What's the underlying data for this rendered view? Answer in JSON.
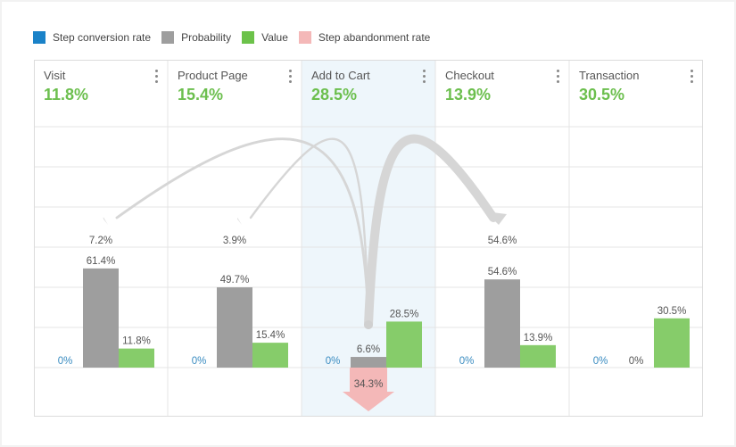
{
  "legend": [
    {
      "label": "Step conversion rate",
      "color": "#1a82c8"
    },
    {
      "label": "Probability",
      "color": "#9e9e9e"
    },
    {
      "label": "Value",
      "color": "#6cc24a"
    },
    {
      "label": "Step abandonment rate",
      "color": "#f4b8b8"
    }
  ],
  "steps": [
    {
      "name": "Visit",
      "rate": "11.8%"
    },
    {
      "name": "Product Page",
      "rate": "15.4%"
    },
    {
      "name": "Add to Cart",
      "rate": "28.5%"
    },
    {
      "name": "Checkout",
      "rate": "13.9%"
    },
    {
      "name": "Transaction",
      "rate": "30.5%"
    }
  ],
  "chart_data": {
    "type": "bar",
    "categories": [
      "Visit",
      "Product Page",
      "Add to Cart",
      "Checkout",
      "Transaction"
    ],
    "ylim": [
      0,
      100
    ],
    "series": [
      {
        "name": "Step conversion rate",
        "values": [
          0,
          0,
          0,
          0,
          0
        ],
        "labels": [
          "0%",
          "0%",
          "0%",
          "0%",
          "0%"
        ],
        "color": "#3a8cc1"
      },
      {
        "name": "Probability",
        "values": [
          61.4,
          49.7,
          6.6,
          54.6,
          0
        ],
        "labels": [
          "61.4%",
          "49.7%",
          "6.6%",
          "54.6%",
          "0%"
        ],
        "color": "#9e9e9e"
      },
      {
        "name": "Value",
        "values": [
          11.8,
          15.4,
          28.5,
          13.9,
          30.5
        ],
        "labels": [
          "11.8%",
          "15.4%",
          "28.5%",
          "13.9%",
          "30.5%"
        ],
        "color": "#86cc6a"
      }
    ],
    "abandonment": {
      "step": "Add to Cart",
      "value": 34.3,
      "label": "34.3%",
      "color": "#f4b8b8"
    },
    "flows": [
      {
        "from": "Add to Cart",
        "to": "Visit",
        "value": 7.2,
        "label": "7.2%"
      },
      {
        "from": "Add to Cart",
        "to": "Product Page",
        "value": 3.9,
        "label": "3.9%"
      },
      {
        "from": "Add to Cart",
        "to": "Checkout",
        "value": 54.6,
        "label": "54.6%"
      }
    ],
    "grid": true
  }
}
